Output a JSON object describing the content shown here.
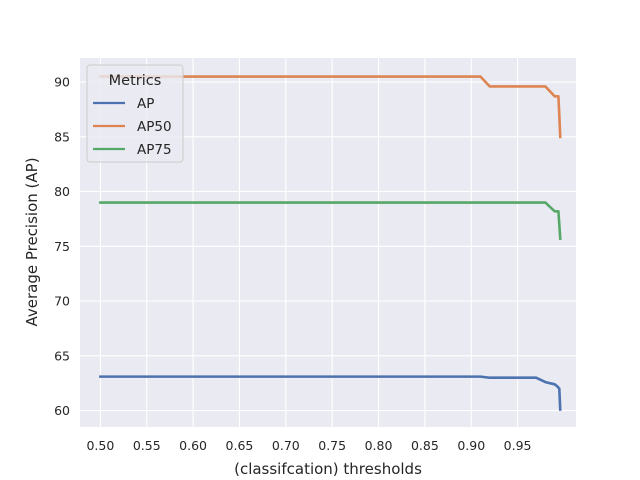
{
  "chart_data": {
    "type": "line",
    "xlabel": "(classifcation) thresholds",
    "ylabel": "Average Precision (AP)",
    "xlim": [
      0.478,
      1.013
    ],
    "ylim": [
      58.5,
      92.2
    ],
    "xticks": [
      "0.50",
      "0.55",
      "0.60",
      "0.65",
      "0.70",
      "0.75",
      "0.80",
      "0.85",
      "0.90",
      "0.95"
    ],
    "xtick_values": [
      0.5,
      0.55,
      0.6,
      0.65,
      0.7,
      0.75,
      0.8,
      0.85,
      0.9,
      0.95
    ],
    "yticks": [
      "60",
      "65",
      "70",
      "75",
      "80",
      "85",
      "90"
    ],
    "ytick_values": [
      60,
      65,
      70,
      75,
      80,
      85,
      90
    ],
    "grid": true,
    "legend": {
      "title": "Metrics",
      "placement": "upper-left"
    },
    "series": [
      {
        "name": "AP",
        "color": "#4c72b0",
        "x": [
          0.5,
          0.91,
          0.92,
          0.97,
          0.98,
          0.99,
          0.993,
          0.995,
          0.996
        ],
        "y": [
          63.1,
          63.1,
          63.0,
          63.0,
          62.6,
          62.4,
          62.2,
          62.0,
          60.1
        ]
      },
      {
        "name": "AP50",
        "color": "#dd8452",
        "x": [
          0.5,
          0.91,
          0.92,
          0.98,
          0.99,
          0.994,
          0.995,
          0.996
        ],
        "y": [
          90.5,
          90.5,
          89.6,
          89.6,
          88.7,
          88.7,
          87.0,
          85.0
        ]
      },
      {
        "name": "AP75",
        "color": "#55a868",
        "x": [
          0.5,
          0.98,
          0.99,
          0.994,
          0.995,
          0.996
        ],
        "y": [
          79.0,
          79.0,
          78.2,
          78.2,
          77.0,
          75.7
        ]
      }
    ]
  }
}
